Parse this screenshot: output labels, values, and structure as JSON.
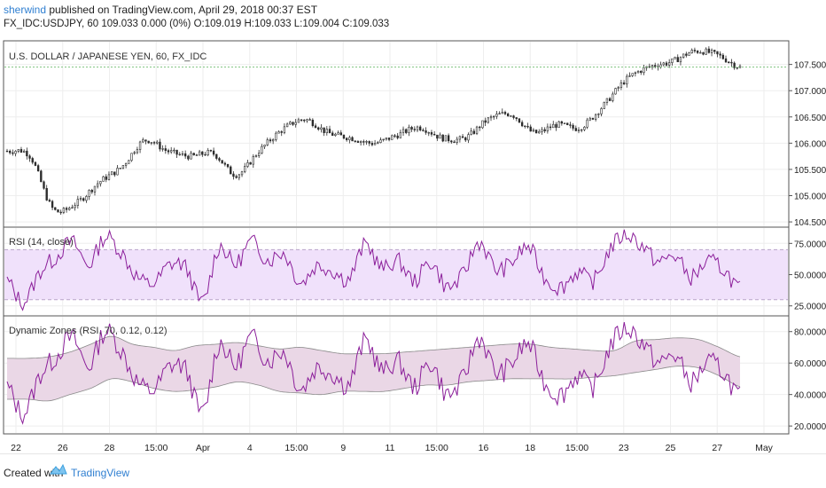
{
  "header": {
    "author": "sherwind",
    "published_text": "published on TradingView.com, April 29, 2018 00:37 EST",
    "symbol_line": "FX_IDC:USDJPY, 60  109.033  0.000 (0%)  O:109.019  H:109.033  L:109.004  C:109.033"
  },
  "footer": {
    "created_with": "Created with",
    "brand": "TradingView"
  },
  "colors": {
    "price": "#2b2b2b",
    "price_line": "#7fc27f",
    "rsi": "#8b1e9a",
    "rsi_band": "#f0e1fb",
    "zone_fill": "#ead7e6",
    "zone_line": "#8a8a8a",
    "grid": "#eeeeee",
    "axis_text": "#222222"
  },
  "chart_data": [
    {
      "type": "line",
      "title": "U.S. DOLLAR / JAPANESE YEN, 60, FX_IDC",
      "series": [],
      "price_line": 107.45,
      "x_ticks": [
        "22",
        "26",
        "28",
        "15:00",
        "Apr",
        "4",
        "15:00",
        "9",
        "11",
        "15:00",
        "16",
        "18",
        "15:00",
        "23",
        "25",
        "27",
        "May"
      ],
      "y_ticks": [
        107.5,
        107.0,
        106.5,
        106.0,
        105.5,
        105.0,
        104.5
      ],
      "y_tick_labels": [
        "107.5000",
        "107.0000",
        "106.5000",
        "106.0000",
        "105.5000",
        "105.0000",
        "104.5000"
      ],
      "ylim": [
        104.4,
        107.95
      ],
      "path": [
        105.85,
        105.75,
        104.75,
        104.85,
        105.25,
        105.55,
        106.05,
        105.85,
        105.75,
        105.8,
        105.4,
        105.85,
        106.25,
        106.45,
        106.2,
        106.1,
        106.0,
        106.15,
        106.3,
        106.1,
        106.1,
        106.45,
        106.55,
        106.2,
        106.35,
        106.3,
        106.7,
        107.2,
        107.45,
        107.55,
        107.75,
        107.68,
        107.45
      ],
      "grid": true
    },
    {
      "type": "line",
      "title": "RSI (14, close)",
      "series": [],
      "y_ticks": [
        75,
        50,
        25
      ],
      "y_tick_labels": [
        "75.0000",
        "50.0000",
        "25.0000"
      ],
      "ylim": [
        17,
        88
      ],
      "band": [
        30,
        70
      ],
      "path": [
        45,
        28,
        52,
        64,
        76,
        58,
        80,
        68,
        48,
        43,
        58,
        55,
        28,
        72,
        58,
        76,
        62,
        67,
        44,
        57,
        53,
        47,
        74,
        55,
        61,
        45,
        60,
        40,
        50,
        76,
        54,
        60,
        72,
        48,
        40,
        52,
        45,
        70,
        82,
        73,
        60,
        65,
        48,
        60,
        54,
        38
      ],
      "grid": true
    },
    {
      "type": "area",
      "title": "Dynamic Zones (RSI, 70, 0.12, 0.12)",
      "series": [],
      "y_ticks": [
        80,
        60,
        40,
        20
      ],
      "y_tick_labels": [
        "80.0000",
        "60.0000",
        "40.0000",
        "20.0000"
      ],
      "ylim": [
        15,
        90
      ],
      "upper": [
        63,
        63,
        64,
        67,
        72,
        77,
        72,
        70,
        68,
        71,
        72,
        73,
        71,
        69,
        70,
        68,
        66,
        66,
        66,
        67,
        68,
        69,
        70,
        71,
        72,
        72,
        70,
        69,
        68,
        68,
        74,
        75,
        76,
        75,
        70,
        64
      ],
      "lower": [
        37,
        37,
        36,
        40,
        44,
        50,
        48,
        44,
        42,
        43,
        45,
        48,
        46,
        42,
        41,
        40,
        42,
        42,
        42,
        44,
        46,
        46,
        48,
        49,
        50,
        50,
        50,
        50,
        51,
        52,
        54,
        56,
        58,
        57,
        52,
        45
      ],
      "rsi": [
        45,
        28,
        52,
        64,
        76,
        58,
        80,
        68,
        48,
        43,
        58,
        55,
        28,
        72,
        58,
        76,
        62,
        67,
        44,
        57,
        53,
        47,
        74,
        55,
        61,
        45,
        60,
        40,
        50,
        76,
        54,
        60,
        72,
        48,
        40,
        52,
        45,
        70,
        82,
        73,
        60,
        65,
        48,
        60,
        54,
        38
      ],
      "grid": true
    }
  ]
}
